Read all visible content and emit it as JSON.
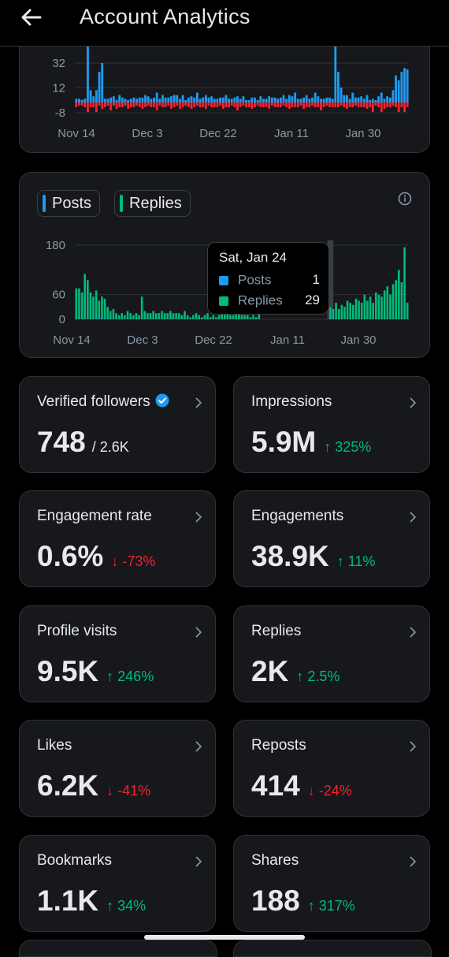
{
  "header": {
    "title": "Account Analytics",
    "back_icon": "arrow-left-icon"
  },
  "colors": {
    "posts": "#1d9bf0",
    "replies": "#00ba7c",
    "negative": "#f4212e",
    "card_bg": "#16181c",
    "border": "#2f3336",
    "muted": "#8b98a5"
  },
  "chart_data": [
    {
      "type": "bar",
      "title": "",
      "x_ticks": [
        "Nov 14",
        "Dec 3",
        "Dec 22",
        "Jan 11",
        "Jan 30"
      ],
      "y_ticks": [
        32,
        12,
        -8
      ],
      "ylim": [
        -8,
        50
      ],
      "series": [
        {
          "values": [
            3,
            3,
            2,
            3,
            50,
            10,
            5,
            10,
            25,
            32,
            3,
            3,
            4,
            5,
            2,
            6,
            4,
            3,
            2,
            3,
            4,
            3,
            4,
            4,
            6,
            5,
            3,
            4,
            8,
            3,
            6,
            4,
            4,
            5,
            6,
            6,
            3,
            6,
            2,
            4,
            5,
            4,
            8,
            3,
            4,
            6,
            4,
            5,
            3,
            3,
            4,
            4,
            6,
            3,
            3,
            4,
            5,
            3,
            5,
            2,
            2,
            4,
            4,
            2,
            5,
            3,
            3,
            5,
            4,
            4,
            3,
            4,
            6,
            3,
            6,
            5,
            8,
            3,
            3,
            4,
            6,
            3,
            4,
            8,
            5,
            3,
            3,
            4,
            4,
            3,
            50,
            25,
            12,
            6,
            6,
            3,
            8,
            4,
            4,
            5,
            3,
            6,
            2,
            3,
            2,
            5,
            8,
            3,
            5,
            4,
            10,
            22,
            18,
            25,
            28,
            27
          ]
        },
        {
          "values": [
            -3,
            -2,
            -2,
            -3,
            -6,
            -3,
            -3,
            -6,
            -2,
            -4,
            -3,
            -2,
            -5,
            -2,
            -4,
            -3,
            -3,
            -2,
            -4,
            -3,
            -3,
            -2,
            -3,
            -4,
            -3,
            -2,
            -3,
            -3,
            -5,
            -2,
            -3,
            -3,
            -2,
            -4,
            -3,
            -2,
            -4,
            -3,
            -2,
            -3,
            -4,
            -3,
            -2,
            -3,
            -3,
            -4,
            -2,
            -3,
            -3,
            -3,
            -2,
            -4,
            -3,
            -3,
            -2,
            -3,
            -5,
            -3,
            -2,
            -3,
            -3,
            -4,
            -3,
            -2,
            -3,
            -3,
            -3,
            -4,
            -2,
            -3,
            -3,
            -3,
            -2,
            -3,
            -4,
            -3,
            -3,
            -3,
            -2,
            -4,
            -3,
            -3,
            -2,
            -3,
            -3,
            -5,
            -3,
            -2,
            -3,
            -3,
            -3,
            -3,
            -2,
            -3,
            -4,
            -3,
            -3,
            -2,
            -3,
            -3,
            -3,
            -4,
            -3,
            -6,
            -2,
            -3,
            -6,
            -4,
            -3,
            -3,
            -2,
            -3,
            -6,
            -3,
            -6,
            -3
          ]
        }
      ]
    },
    {
      "type": "bar",
      "title": "",
      "x_ticks": [
        "Nov 14",
        "Dec 3",
        "Dec 22",
        "Jan 11",
        "Jan 30"
      ],
      "y_ticks": [
        180,
        60,
        0
      ],
      "ylim": [
        0,
        180
      ],
      "legend": [
        "Posts",
        "Replies"
      ],
      "series": [
        {
          "name": "Posts",
          "values": [
            0,
            0,
            0,
            0,
            1,
            0,
            0,
            0,
            1,
            1,
            0,
            0,
            0,
            0,
            0,
            0,
            0,
            0,
            0,
            0,
            0,
            0,
            0,
            0,
            0,
            0,
            0,
            0,
            0,
            0,
            0,
            0,
            0,
            0,
            0,
            0,
            0,
            0,
            0,
            0,
            0,
            0,
            0,
            0,
            0,
            0,
            0,
            0,
            0,
            0,
            0,
            0,
            0,
            0,
            0,
            0,
            0,
            0,
            0,
            0,
            0,
            0,
            0,
            0,
            0,
            0,
            0,
            0,
            0,
            0,
            0,
            0,
            0,
            0,
            0,
            0,
            0,
            0,
            0,
            0,
            0,
            0,
            0,
            0,
            0,
            0,
            0,
            0,
            0,
            0,
            1,
            0,
            0,
            0,
            0,
            0,
            0,
            0,
            0,
            0,
            0,
            0,
            0,
            0,
            0,
            0,
            0,
            0,
            0,
            0,
            0,
            0,
            0,
            0,
            0,
            0
          ]
        },
        {
          "name": "Replies",
          "values": [
            75,
            75,
            65,
            110,
            95,
            65,
            55,
            70,
            45,
            55,
            50,
            30,
            20,
            25,
            15,
            10,
            15,
            10,
            20,
            15,
            10,
            15,
            10,
            55,
            20,
            15,
            15,
            20,
            15,
            15,
            20,
            15,
            15,
            20,
            15,
            15,
            15,
            10,
            20,
            10,
            5,
            10,
            15,
            10,
            5,
            10,
            15,
            5,
            10,
            5,
            10,
            25,
            30,
            15,
            10,
            10,
            60,
            30,
            10,
            10,
            10,
            5,
            10,
            5,
            15,
            0,
            0,
            0,
            0,
            0,
            0,
            0,
            0,
            0,
            0,
            0,
            0,
            0,
            0,
            0,
            0,
            0,
            0,
            0,
            0,
            0,
            0,
            0,
            0,
            29,
            25,
            40,
            25,
            35,
            30,
            45,
            40,
            35,
            50,
            45,
            40,
            60,
            45,
            55,
            40,
            65,
            60,
            55,
            70,
            80,
            60,
            85,
            95,
            120,
            90,
            175,
            40
          ]
        }
      ]
    }
  ],
  "legend_pills": [
    {
      "label": "Posts",
      "color": "#1d9bf0"
    },
    {
      "label": "Replies",
      "color": "#00ba7c"
    }
  ],
  "tooltip": {
    "date": "Sat, Jan 24",
    "rows": [
      {
        "label": "Posts",
        "value": "1",
        "color": "#1d9bf0"
      },
      {
        "label": "Replies",
        "value": "29",
        "color": "#00ba7c"
      }
    ]
  },
  "metrics": [
    {
      "key": "verified-followers",
      "label": "Verified followers",
      "value": "748",
      "sub": "/ 2.6K",
      "change": "",
      "dir": ""
    },
    {
      "key": "impressions",
      "label": "Impressions",
      "value": "5.9M",
      "sub": "",
      "change": "↑ 325%",
      "dir": "up"
    },
    {
      "key": "engagement-rate",
      "label": "Engagement rate",
      "value": "0.6%",
      "sub": "",
      "change": "↓ -73%",
      "dir": "down"
    },
    {
      "key": "engagements",
      "label": "Engagements",
      "value": "38.9K",
      "sub": "",
      "change": "↑ 11%",
      "dir": "up"
    },
    {
      "key": "profile-visits",
      "label": "Profile visits",
      "value": "9.5K",
      "sub": "",
      "change": "↑ 246%",
      "dir": "up"
    },
    {
      "key": "replies",
      "label": "Replies",
      "value": "2K",
      "sub": "",
      "change": "↑ 2.5%",
      "dir": "up"
    },
    {
      "key": "likes",
      "label": "Likes",
      "value": "6.2K",
      "sub": "",
      "change": "↓ -41%",
      "dir": "down"
    },
    {
      "key": "reposts",
      "label": "Reposts",
      "value": "414",
      "sub": "",
      "change": "↓ -24%",
      "dir": "down"
    },
    {
      "key": "bookmarks",
      "label": "Bookmarks",
      "value": "1.1K",
      "sub": "",
      "change": "↑ 34%",
      "dir": "up"
    },
    {
      "key": "shares",
      "label": "Shares",
      "value": "188",
      "sub": "",
      "change": "↑ 317%",
      "dir": "up"
    }
  ]
}
